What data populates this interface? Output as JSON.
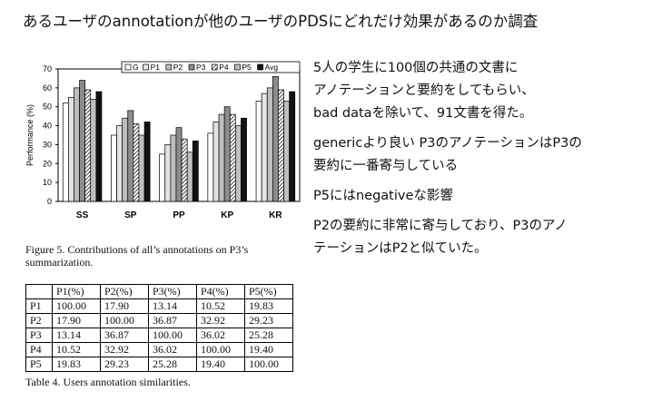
{
  "title": "あるユーザのannotationが他のユーザのPDSにどれだけ効果があるのか調査",
  "figure": {
    "caption_line1": "Figure 5. Contributions of all’s annotations on P3’s",
    "caption_line2": "summarization."
  },
  "chart_data": {
    "type": "bar",
    "categories": [
      "SS",
      "SP",
      "PP",
      "KP",
      "KR"
    ],
    "series": [
      {
        "name": "G",
        "values": [
          52,
          35,
          25,
          36,
          53
        ]
      },
      {
        "name": "P1",
        "values": [
          55,
          40,
          30,
          42,
          57
        ]
      },
      {
        "name": "P2",
        "values": [
          60,
          44,
          35,
          46,
          60
        ]
      },
      {
        "name": "P3",
        "values": [
          64,
          48,
          39,
          50,
          66
        ]
      },
      {
        "name": "P4",
        "values": [
          59,
          41,
          33,
          46,
          59
        ]
      },
      {
        "name": "P5",
        "values": [
          54,
          35,
          26,
          40,
          53
        ]
      },
      {
        "name": "Avg",
        "values": [
          58,
          42,
          32,
          44,
          58
        ]
      }
    ],
    "ylabel": "Performance (%)",
    "xlabel": "",
    "ylim": [
      0,
      70
    ],
    "yticks": [
      "0",
      "10",
      "20",
      "30",
      "40",
      "50",
      "60",
      "70"
    ],
    "legend_position": "top-right",
    "fills": [
      "#ffffff",
      "#e3e3e3",
      "#bdbdbd",
      "#8c8c8c",
      "hatch",
      "#bfbfbf",
      "#111111"
    ]
  },
  "table": {
    "headers": [
      "",
      "P1(%)",
      "P2(%)",
      "P3(%)",
      "P4(%)",
      "P5(%)"
    ],
    "rows": [
      [
        "P1",
        "100.00",
        "17.90",
        "13.14",
        "10.52",
        "19.83"
      ],
      [
        "P2",
        "17.90",
        "100.00",
        "36.87",
        "32.92",
        "29.23"
      ],
      [
        "P3",
        "13.14",
        "36.87",
        "100.00",
        "36.02",
        "25.28"
      ],
      [
        "P4",
        "10.52",
        "32.92",
        "36.02",
        "100.00",
        "19.40"
      ],
      [
        "P5",
        "19.83",
        "29.23",
        "25.28",
        "19.40",
        "100.00"
      ]
    ],
    "caption": "Table 4. Users annotation similarities."
  },
  "notes": {
    "p1_line1": "5人の学生に100個の共通の文書に",
    "p1_line2": "アノテーションと要約をしてもらい、",
    "p1_line3": "bad dataを除いて、91文書を得た。",
    "p2_line1": "genericより良い P3のアノテーションはP3の",
    "p2_line2": "要約に一番寄与している",
    "p3_line1": "P5にはnegativeな影響",
    "p4_line1": "P2の要約に非常に寄与しており、P3のアノ",
    "p4_line2": "テーションはP2と似ていた。"
  }
}
